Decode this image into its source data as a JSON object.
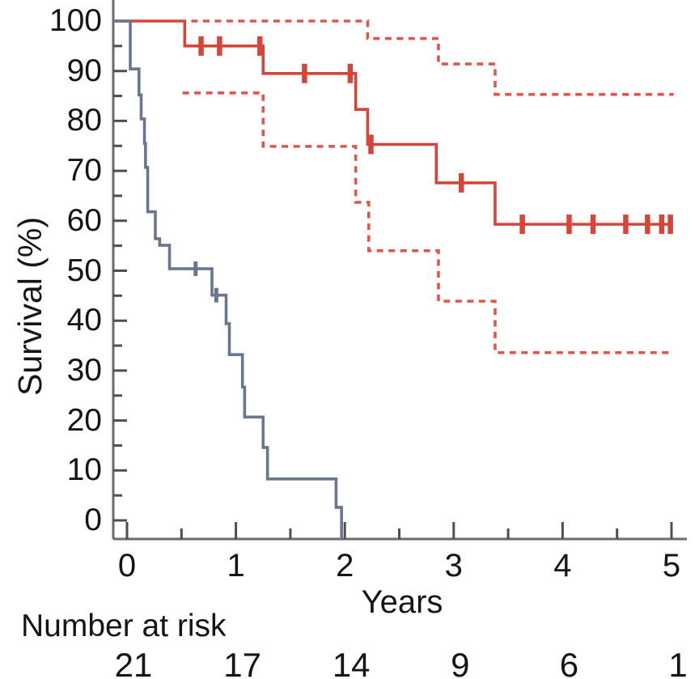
{
  "chart_data": {
    "type": "line",
    "subtype": "kaplan-meier-step",
    "title": "",
    "xlabel": "Years",
    "ylabel": "Survival (%)",
    "xlim": [
      0,
      5
    ],
    "ylim": [
      0,
      100
    ],
    "grid": false,
    "legend": "none",
    "x_ticks_major": [
      0,
      1,
      2,
      3,
      4,
      5
    ],
    "x_ticks_minor": [
      0.5,
      1.5,
      2.5,
      3.5,
      4.5
    ],
    "y_ticks_major": [
      0,
      10,
      20,
      30,
      40,
      50,
      60,
      70,
      80,
      90,
      100
    ],
    "y_ticks_minor": [
      5,
      15,
      25,
      35,
      45,
      55,
      65,
      75,
      85,
      95
    ],
    "colors": {
      "red_solid": "#d6453a",
      "red_dashed": "#e0564a",
      "blue_gray": "#6a7590",
      "axis": "#6a6a6a",
      "tick": "#4f4f4f",
      "text": "#151515"
    },
    "series": [
      {
        "name": "red-group-survival",
        "style": "solid",
        "color": "#d6453a",
        "extend_to_axis": true,
        "points": [
          [
            0,
            100
          ],
          [
            0.53,
            95.0
          ],
          [
            1.25,
            89.5
          ],
          [
            2.1,
            82.3
          ],
          [
            2.21,
            75.3
          ],
          [
            2.84,
            67.6
          ],
          [
            3.38,
            59.3
          ],
          [
            5.0,
            59.3
          ]
        ],
        "censors": [
          [
            0.68,
            95.0
          ],
          [
            0.85,
            95.0
          ],
          [
            1.22,
            95.0
          ],
          [
            1.63,
            89.5
          ],
          [
            2.05,
            89.5
          ],
          [
            2.24,
            75.3
          ],
          [
            3.07,
            67.6
          ],
          [
            3.63,
            59.3
          ],
          [
            4.06,
            59.3
          ],
          [
            4.28,
            59.3
          ],
          [
            4.58,
            59.3
          ],
          [
            4.78,
            59.3
          ],
          [
            4.91,
            59.3
          ],
          [
            4.99,
            59.3
          ]
        ]
      },
      {
        "name": "red-group-ci-upper",
        "style": "dashed",
        "color": "#e0564a",
        "extend_to_axis": false,
        "points": [
          [
            0.59,
            100
          ],
          [
            2.21,
            96.5
          ],
          [
            2.86,
            91.4
          ],
          [
            3.38,
            85.3
          ],
          [
            5.02,
            85.3
          ]
        ],
        "censors": []
      },
      {
        "name": "red-group-ci-lower",
        "style": "dashed",
        "color": "#e0564a",
        "extend_to_axis": false,
        "points": [
          [
            0.51,
            85.6
          ],
          [
            1.25,
            74.9
          ],
          [
            2.1,
            63.7
          ],
          [
            2.22,
            54.0
          ],
          [
            2.86,
            43.9
          ],
          [
            3.38,
            33.6
          ],
          [
            4.98,
            33.6
          ]
        ],
        "censors": []
      },
      {
        "name": "blue-group-survival",
        "style": "solid",
        "color": "#6a7590",
        "extend_to_axis": true,
        "drop_to_axis": true,
        "points": [
          [
            0,
            100
          ],
          [
            0.03,
            90.4
          ],
          [
            0.11,
            85.2
          ],
          [
            0.13,
            80.4
          ],
          [
            0.16,
            75.5
          ],
          [
            0.17,
            70.7
          ],
          [
            0.19,
            61.8
          ],
          [
            0.26,
            56.4
          ],
          [
            0.3,
            55.1
          ],
          [
            0.39,
            50.4
          ],
          [
            0.78,
            45.1
          ],
          [
            0.91,
            39.4
          ],
          [
            0.94,
            33.2
          ],
          [
            1.06,
            26.7
          ],
          [
            1.08,
            20.7
          ],
          [
            1.25,
            14.6
          ],
          [
            1.29,
            8.3
          ],
          [
            1.92,
            2.6
          ],
          [
            1.97,
            0
          ]
        ],
        "censors": [
          [
            0.63,
            50.4
          ],
          [
            0.82,
            45.1
          ]
        ]
      }
    ],
    "number_at_risk": {
      "label": "Number at risk",
      "times": [
        0,
        1,
        2,
        3,
        4,
        5
      ],
      "counts": [
        21,
        17,
        14,
        9,
        6,
        1
      ]
    }
  }
}
